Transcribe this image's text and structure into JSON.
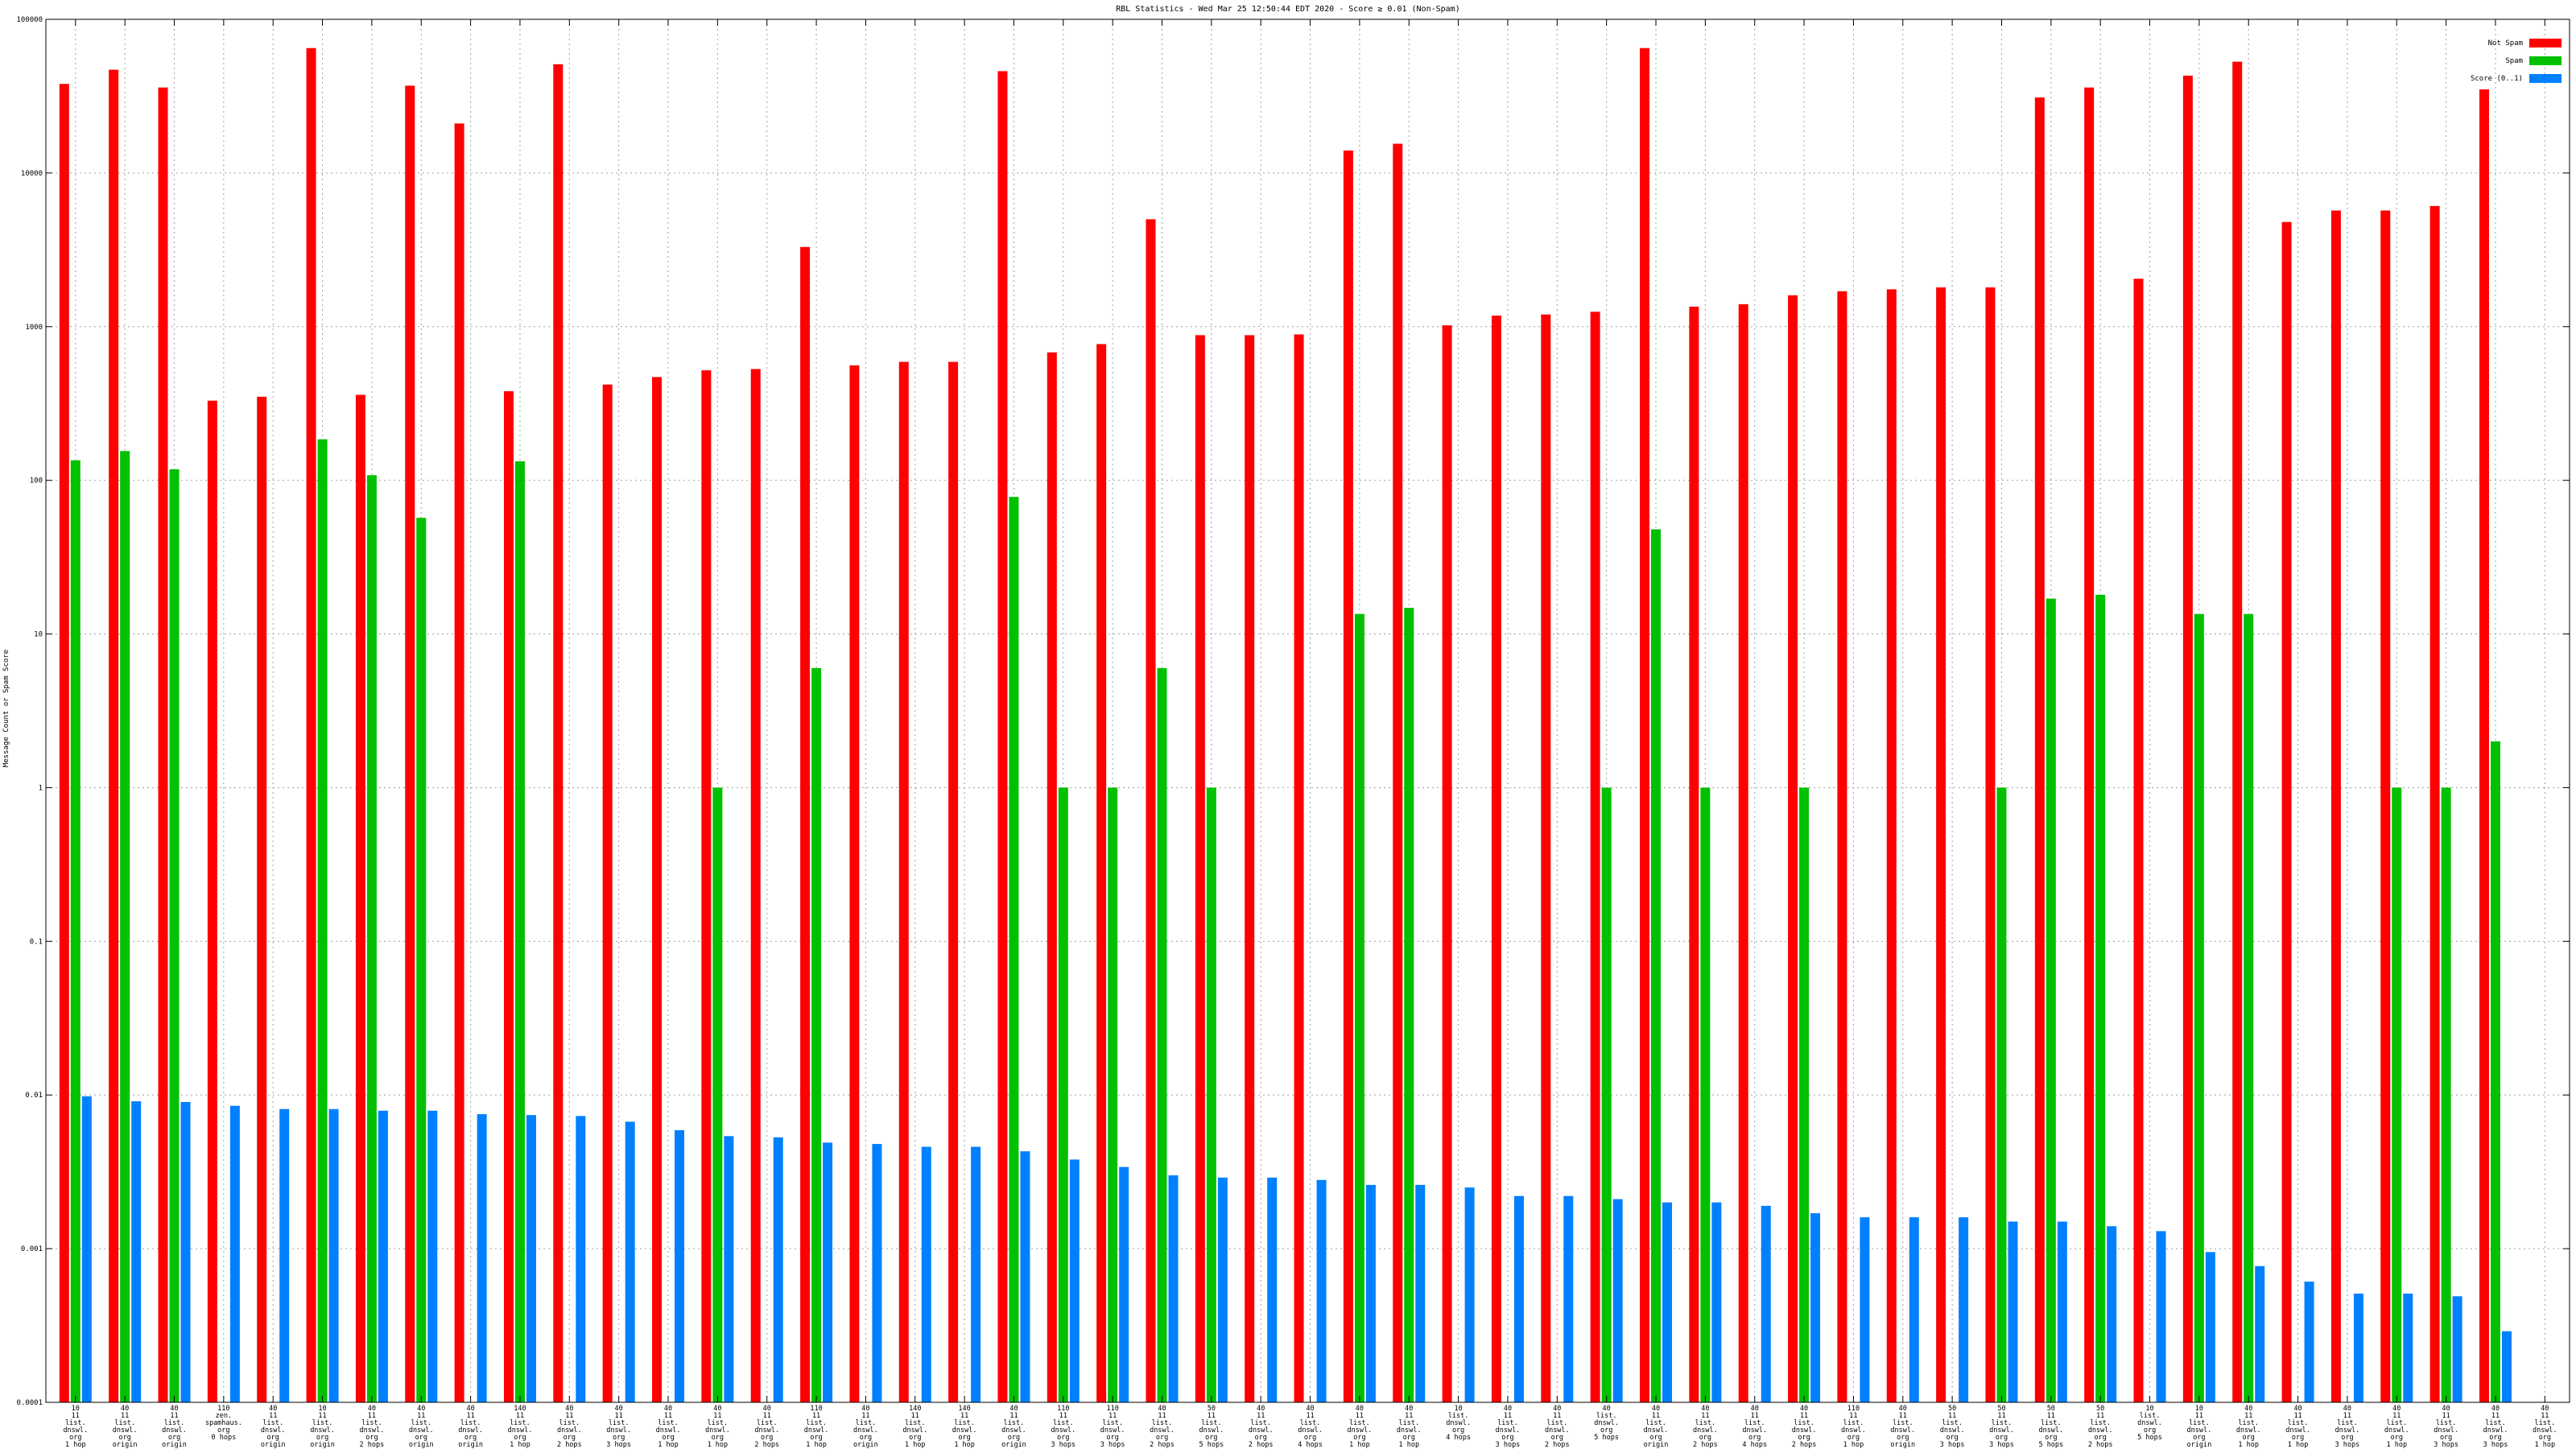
{
  "chart_data": {
    "type": "bar",
    "title": "RBL Statistics - Wed Mar 25 12:50:44 EDT 2020 - Score ≥ 0.01 (Non-Spam)",
    "xlabel": "",
    "ylabel": "Message Count or Spam Score",
    "yscale": "log",
    "ylim": [
      0.0001,
      100000
    ],
    "yticks": [
      {
        "value": 0.0001,
        "label": "0.0001"
      },
      {
        "value": 0.001,
        "label": "0.001"
      },
      {
        "value": 0.01,
        "label": "0.01"
      },
      {
        "value": 0.1,
        "label": "0.1"
      },
      {
        "value": 1,
        "label": "1"
      },
      {
        "value": 10,
        "label": "10"
      },
      {
        "value": 100,
        "label": "100"
      },
      {
        "value": 1000,
        "label": "1000"
      },
      {
        "value": 10000,
        "label": "10000"
      },
      {
        "value": 100000,
        "label": "100000"
      }
    ],
    "grid": true,
    "legend_position": "top-right",
    "colors": {
      "not_spam": "#ff0000",
      "spam": "#00c000",
      "score": "#0080ff"
    },
    "categories": [
      [
        "10",
        "11",
        "list.",
        "dnswl.",
        "org",
        "1 hop"
      ],
      [
        "40",
        "11",
        "list.",
        "dnswl.",
        "org",
        "origin"
      ],
      [
        "40",
        "11",
        "list.",
        "dnswl.",
        "org",
        "origin"
      ],
      [
        "110",
        "zen.",
        "spamhaus.",
        "org",
        "0 hops"
      ],
      [
        "40",
        "11",
        "list.",
        "dnswl.",
        "org",
        "origin"
      ],
      [
        "10",
        "11",
        "list.",
        "dnswl.",
        "org",
        "origin"
      ],
      [
        "40",
        "11",
        "list.",
        "dnswl.",
        "org",
        "2 hops"
      ],
      [
        "40",
        "11",
        "list.",
        "dnswl.",
        "org",
        "origin"
      ],
      [
        "40",
        "11",
        "list.",
        "dnswl.",
        "org",
        "origin"
      ],
      [
        "140",
        "11",
        "list.",
        "dnswl.",
        "org",
        "1 hop"
      ],
      [
        "40",
        "11",
        "list.",
        "dnswl.",
        "org",
        "2 hops"
      ],
      [
        "40",
        "11",
        "list.",
        "dnswl.",
        "org",
        "3 hops"
      ],
      [
        "40",
        "11",
        "list.",
        "dnswl.",
        "org",
        "1 hop"
      ],
      [
        "40",
        "11",
        "list.",
        "dnswl.",
        "org",
        "1 hop"
      ],
      [
        "40",
        "11",
        "list.",
        "dnswl.",
        "org",
        "2 hops"
      ],
      [
        "110",
        "11",
        "list.",
        "dnswl.",
        "org",
        "1 hop"
      ],
      [
        "40",
        "11",
        "list.",
        "dnswl.",
        "org",
        "origin"
      ],
      [
        "140",
        "11",
        "list.",
        "dnswl.",
        "org",
        "1 hop"
      ],
      [
        "140",
        "11",
        "list.",
        "dnswl.",
        "org",
        "1 hop"
      ],
      [
        "40",
        "11",
        "list.",
        "dnswl.",
        "org",
        "origin"
      ],
      [
        "110",
        "11",
        "list.",
        "dnswl.",
        "org",
        "3 hops"
      ],
      [
        "110",
        "11",
        "list.",
        "dnswl.",
        "org",
        "3 hops"
      ],
      [
        "40",
        "11",
        "list.",
        "dnswl.",
        "org",
        "2 hops"
      ],
      [
        "50",
        "11",
        "list.",
        "dnswl.",
        "org",
        "5 hops"
      ],
      [
        "40",
        "11",
        "list.",
        "dnswl.",
        "org",
        "2 hops"
      ],
      [
        "40",
        "11",
        "list.",
        "dnswl.",
        "org",
        "4 hops"
      ],
      [
        "40",
        "11",
        "list.",
        "dnswl.",
        "org",
        "1 hop"
      ],
      [
        "40",
        "11",
        "list.",
        "dnswl.",
        "org",
        "1 hop"
      ],
      [
        "10",
        "list.",
        "dnswl.",
        "org",
        "4 hops"
      ],
      [
        "40",
        "11",
        "list.",
        "dnswl.",
        "org",
        "3 hops"
      ],
      [
        "40",
        "11",
        "list.",
        "dnswl.",
        "org",
        "2 hops"
      ],
      [
        "40",
        "list.",
        "dnswl.",
        "org",
        "5 hops"
      ],
      [
        "40",
        "11",
        "list.",
        "dnswl.",
        "org",
        "origin"
      ],
      [
        "40",
        "11",
        "list.",
        "dnswl.",
        "org",
        "2 hops"
      ],
      [
        "40",
        "11",
        "list.",
        "dnswl.",
        "org",
        "4 hops"
      ],
      [
        "40",
        "11",
        "list.",
        "dnswl.",
        "org",
        "2 hops"
      ],
      [
        "110",
        "11",
        "list.",
        "dnswl.",
        "org",
        "1 hop"
      ],
      [
        "40",
        "11",
        "list.",
        "dnswl.",
        "org",
        "origin"
      ],
      [
        "50",
        "11",
        "list.",
        "dnswl.",
        "org",
        "3 hops"
      ],
      [
        "50",
        "11",
        "list.",
        "dnswl.",
        "org",
        "3 hops"
      ],
      [
        "50",
        "11",
        "list.",
        "dnswl.",
        "org",
        "5 hops"
      ],
      [
        "50",
        "11",
        "list.",
        "dnswl.",
        "org",
        "2 hops"
      ],
      [
        "10",
        "list.",
        "dnswl.",
        "org",
        "5 hops"
      ],
      [
        "10",
        "11",
        "list.",
        "dnswl.",
        "org",
        "origin"
      ],
      [
        "40",
        "11",
        "list.",
        "dnswl.",
        "org",
        "1 hop"
      ],
      [
        "40",
        "11",
        "list.",
        "dnswl.",
        "org",
        "1 hop"
      ],
      [
        "40",
        "11",
        "list.",
        "dnswl.",
        "org",
        "3 hops"
      ],
      [
        "40",
        "11",
        "list.",
        "dnswl.",
        "org",
        "1 hop"
      ],
      [
        "40",
        "11",
        "list.",
        "dnswl.",
        "org",
        "3 hops"
      ],
      [
        "40",
        "11",
        "list.",
        "dnswl.",
        "org",
        "3 hops"
      ],
      [
        "40",
        "11",
        "list.",
        "dnswl.",
        "org",
        "1 hop"
      ]
    ],
    "series": [
      {
        "name": "Not Spam",
        "values": [
          38000,
          47000,
          36000,
          330,
          350,
          65000,
          360,
          37000,
          21000,
          380,
          51000,
          420,
          470,
          520,
          530,
          3300,
          560,
          590,
          590,
          46000,
          680,
          770,
          5000,
          880,
          880,
          890,
          14000,
          15500,
          1020,
          1180,
          1200,
          1250,
          65000,
          1350,
          1400,
          1600,
          1700,
          1750,
          1800,
          1800,
          31000,
          36000,
          2050,
          43000,
          53000,
          4800,
          5700,
          5700,
          6100,
          35000,
          null
        ]
      },
      {
        "name": "Spam",
        "values": [
          135,
          155,
          118,
          null,
          null,
          185,
          108,
          57,
          null,
          133,
          null,
          null,
          null,
          1,
          null,
          6,
          null,
          null,
          null,
          78,
          1,
          1,
          6,
          1,
          null,
          null,
          13.5,
          14.8,
          null,
          null,
          null,
          1,
          48,
          1,
          null,
          1,
          null,
          null,
          null,
          1,
          17,
          18,
          null,
          13.5,
          13.5,
          null,
          null,
          1,
          1,
          2,
          null
        ]
      },
      {
        "name": "Score (0..1)",
        "values": [
          0.0098,
          0.0091,
          0.009,
          0.0085,
          0.0081,
          0.0081,
          0.0079,
          0.0079,
          0.0075,
          0.0074,
          0.0073,
          0.0067,
          0.0059,
          0.0054,
          0.0053,
          0.0049,
          0.0048,
          0.0046,
          0.0046,
          0.0043,
          0.0038,
          0.0034,
          0.003,
          0.0029,
          0.0029,
          0.0028,
          0.0026,
          0.0026,
          0.0025,
          0.0022,
          0.0022,
          0.0021,
          0.002,
          0.002,
          0.0019,
          0.0017,
          0.0016,
          0.0016,
          0.0016,
          0.0015,
          0.0015,
          0.0014,
          0.0013,
          0.00095,
          0.00077,
          0.00061,
          0.00051,
          0.00051,
          0.00049,
          0.00029,
          null
        ]
      }
    ]
  }
}
